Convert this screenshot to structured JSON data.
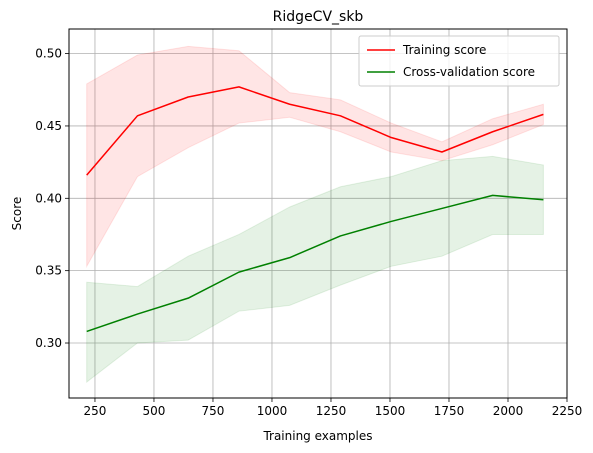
{
  "chart_data": {
    "type": "line",
    "title": "RidgeCV_skb",
    "xlabel": "Training examples",
    "ylabel": "Score",
    "xlim": [
      140,
      2250
    ],
    "ylim": [
      0.262,
      0.517
    ],
    "xticks": [
      250,
      500,
      750,
      1000,
      1250,
      1500,
      1750,
      2000,
      2250
    ],
    "yticks": [
      0.3,
      0.35,
      0.4,
      0.45,
      0.5
    ],
    "grid": true,
    "legend_position": "top-right",
    "x": [
      215,
      430,
      645,
      860,
      1075,
      1290,
      1505,
      1720,
      1935,
      2150
    ],
    "series": [
      {
        "name": "Training score",
        "color": "#ff0000",
        "band_color": "#ff0000",
        "values": [
          0.416,
          0.457,
          0.47,
          0.477,
          0.465,
          0.457,
          0.442,
          0.432,
          0.446,
          0.458
        ],
        "lower": [
          0.353,
          0.415,
          0.435,
          0.452,
          0.456,
          0.446,
          0.432,
          0.426,
          0.437,
          0.451
        ],
        "upper": [
          0.479,
          0.499,
          0.505,
          0.502,
          0.473,
          0.468,
          0.452,
          0.439,
          0.455,
          0.465
        ]
      },
      {
        "name": "Cross-validation score",
        "color": "#008000",
        "band_color": "#008000",
        "values": [
          0.308,
          0.32,
          0.331,
          0.349,
          0.359,
          0.374,
          0.384,
          0.393,
          0.402,
          0.399
        ],
        "lower": [
          0.273,
          0.3,
          0.302,
          0.322,
          0.326,
          0.34,
          0.353,
          0.36,
          0.375,
          0.375
        ],
        "upper": [
          0.342,
          0.339,
          0.36,
          0.375,
          0.394,
          0.408,
          0.415,
          0.426,
          0.429,
          0.423
        ]
      }
    ]
  }
}
